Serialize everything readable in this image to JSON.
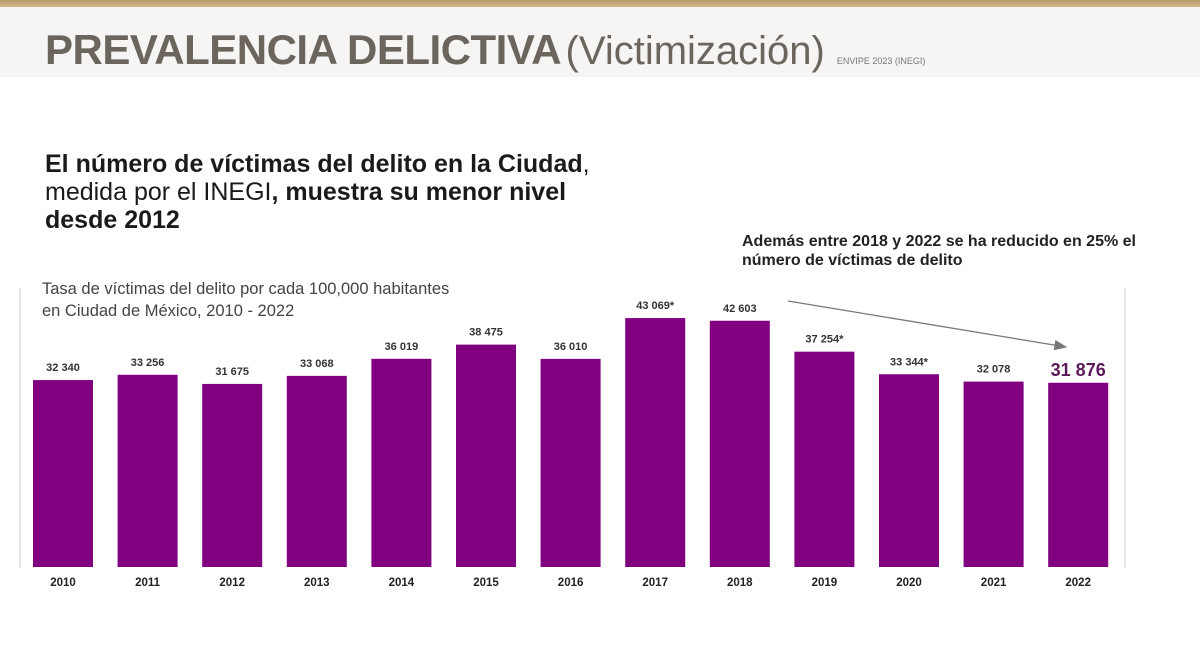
{
  "header": {
    "title_bold": "PREVALENCIA DELICTIVA",
    "title_light": "(Victimización)",
    "source": "ENVIPE 2023 (INEGI)"
  },
  "headline": {
    "p1": "El número de víctimas del delito en la Ciudad",
    "p2": ", medida por el INEGI",
    "p3": ", muestra su menor nivel desde 2012"
  },
  "annotation": "Además entre 2018 y 2022 se ha reducido en 25% el número de víctimas de delito",
  "colors": {
    "bar": "#800080",
    "header_band": "#c4a67a",
    "title": "#6b655d"
  },
  "chart_data": {
    "type": "bar",
    "title": "Tasa de víctimas del delito por cada 100,000 habitantes en Ciudad de México, 2010 - 2022",
    "xlabel": "",
    "ylabel": "",
    "ylim": [
      0,
      46000
    ],
    "grid": false,
    "categories": [
      "2010",
      "2011",
      "2012",
      "2013",
      "2014",
      "2015",
      "2016",
      "2017",
      "2018",
      "2019",
      "2020",
      "2021",
      "2022"
    ],
    "values": [
      32340,
      33256,
      31675,
      33068,
      36019,
      38475,
      36010,
      43069,
      42603,
      37254,
      33344,
      32078,
      31876
    ],
    "data_labels": [
      "32 340",
      "33 256",
      "31 675",
      "33 068",
      "36 019",
      "38 475",
      "36 010",
      "43 069*",
      "42 603",
      "37 254*",
      "33 344*",
      "32 078",
      "31 876"
    ]
  }
}
